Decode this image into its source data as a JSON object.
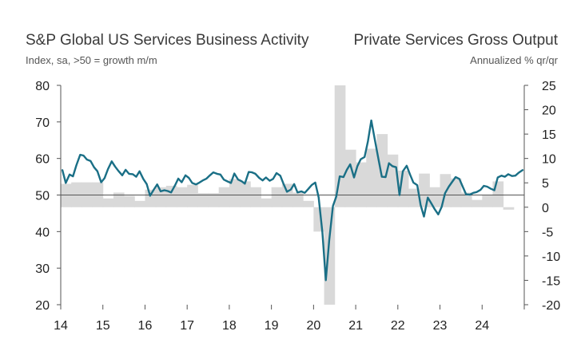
{
  "header": {
    "left_title": "S&P Global US Services Business Activity",
    "left_subtitle": "Index, sa, >50 = growth m/m",
    "right_title": "Private Services Gross Output",
    "right_subtitle": "Annualized % qr/qr"
  },
  "chart_data": {
    "type": "line",
    "title": "S&P Global US Services Business Activity / Private Services Gross Output",
    "x_range": [
      2014.0,
      2025.0
    ],
    "x_ticks": [
      "14",
      "15",
      "16",
      "17",
      "18",
      "19",
      "20",
      "21",
      "22",
      "23",
      "24"
    ],
    "left_axis": {
      "label": "Index, sa, >50 = growth m/m",
      "range": [
        20,
        80
      ],
      "ticks": [
        "80",
        "70",
        "60",
        "50",
        "40",
        "30",
        "20"
      ]
    },
    "right_axis": {
      "label": "Annualized % qr/qr",
      "range": [
        -20,
        25
      ],
      "ticks": [
        "25",
        "20",
        "15",
        "10",
        "5",
        "0",
        "-5",
        "-10",
        "-15",
        "-20"
      ]
    },
    "colors": {
      "line": "#1a6f86",
      "bars": "#d9d9d9",
      "axis": "#555555"
    },
    "series": [
      {
        "name": "S&P Global US Services Business Activity",
        "kind": "line",
        "axis": "left",
        "x": [
          2014.0,
          2014.08,
          2014.17,
          2014.25,
          2014.33,
          2014.42,
          2014.5,
          2014.58,
          2014.67,
          2014.75,
          2014.83,
          2014.92,
          2015.0,
          2015.08,
          2015.17,
          2015.25,
          2015.33,
          2015.42,
          2015.5,
          2015.58,
          2015.67,
          2015.75,
          2015.83,
          2015.92,
          2016.0,
          2016.08,
          2016.17,
          2016.25,
          2016.33,
          2016.42,
          2016.5,
          2016.58,
          2016.67,
          2016.75,
          2016.83,
          2016.92,
          2017.0,
          2017.08,
          2017.17,
          2017.25,
          2017.33,
          2017.42,
          2017.5,
          2017.58,
          2017.67,
          2017.75,
          2017.83,
          2017.92,
          2018.0,
          2018.08,
          2018.17,
          2018.25,
          2018.33,
          2018.42,
          2018.5,
          2018.58,
          2018.67,
          2018.75,
          2018.83,
          2018.92,
          2019.0,
          2019.08,
          2019.17,
          2019.25,
          2019.33,
          2019.42,
          2019.5,
          2019.58,
          2019.67,
          2019.75,
          2019.83,
          2019.92,
          2020.0,
          2020.08,
          2020.17,
          2020.25,
          2020.33,
          2020.42,
          2020.5,
          2020.58,
          2020.67,
          2020.75,
          2020.83,
          2020.92,
          2021.0,
          2021.08,
          2021.17,
          2021.25,
          2021.33,
          2021.42,
          2021.5,
          2021.58,
          2021.67,
          2021.75,
          2021.83,
          2021.92,
          2022.0,
          2022.08,
          2022.17,
          2022.25,
          2022.33,
          2022.42,
          2022.5,
          2022.58,
          2022.67,
          2022.75,
          2022.83,
          2022.92,
          2023.0,
          2023.08,
          2023.17,
          2023.25,
          2023.33,
          2023.42,
          2023.5,
          2023.58,
          2023.67,
          2023.75,
          2023.83,
          2023.92,
          2024.0,
          2024.08,
          2024.17,
          2024.25,
          2024.33,
          2024.42,
          2024.5,
          2024.58,
          2024.67,
          2024.75,
          2024.83,
          2024.92
        ],
        "y": [
          56.8,
          53.3,
          55.6,
          55.1,
          58.1,
          61.0,
          60.8,
          59.7,
          59.3,
          57.6,
          56.5,
          53.5,
          54.6,
          57.1,
          59.2,
          57.8,
          56.6,
          55.4,
          56.9,
          55.8,
          55.7,
          55.0,
          56.5,
          54.4,
          53.0,
          49.8,
          51.5,
          52.9,
          51.0,
          51.3,
          51.1,
          50.7,
          52.6,
          54.5,
          53.5,
          55.4,
          54.7,
          53.3,
          52.9,
          53.4,
          54.0,
          54.5,
          55.4,
          56.2,
          55.8,
          55.6,
          54.2,
          53.7,
          53.3,
          55.9,
          54.2,
          53.8,
          53.1,
          56.3,
          56.2,
          55.8,
          54.7,
          54.0,
          54.8,
          53.9,
          54.4,
          56.0,
          55.3,
          53.0,
          50.9,
          51.5,
          53.0,
          50.7,
          51.0,
          50.6,
          51.6,
          52.8,
          53.4,
          49.4,
          39.8,
          26.7,
          37.5,
          47.0,
          49.6,
          55.1,
          54.9,
          56.9,
          58.4,
          54.8,
          57.9,
          59.8,
          60.4,
          64.7,
          70.4,
          64.8,
          59.8,
          55.0,
          54.9,
          58.7,
          57.9,
          57.6,
          50.0,
          56.5,
          58.0,
          55.6,
          53.4,
          52.7,
          47.3,
          44.1,
          49.3,
          47.8,
          46.2,
          44.7,
          46.8,
          50.5,
          52.3,
          53.6,
          54.9,
          54.4,
          52.3,
          50.2,
          50.1,
          50.6,
          50.8,
          51.4,
          52.5,
          52.3,
          51.7,
          51.3,
          54.8,
          55.3,
          55.0,
          55.7,
          55.2,
          55.3,
          56.1,
          56.8
        ]
      },
      {
        "name": "Private Services Gross Output",
        "kind": "bar",
        "axis": "right",
        "quarters": [
          2014.0,
          2014.25,
          2014.5,
          2014.75,
          2015.0,
          2015.25,
          2015.5,
          2015.75,
          2016.0,
          2016.25,
          2016.5,
          2016.75,
          2017.0,
          2017.25,
          2017.5,
          2017.75,
          2018.0,
          2018.25,
          2018.5,
          2018.75,
          2019.0,
          2019.25,
          2019.5,
          2019.75,
          2020.0,
          2020.25,
          2020.5,
          2020.75,
          2021.0,
          2021.25,
          2021.5,
          2021.75,
          2022.0,
          2022.25,
          2022.5,
          2022.75,
          2023.0,
          2023.25,
          2023.5,
          2023.75,
          2024.0,
          2024.25,
          2024.5
        ],
        "values": [
          4.8,
          5.1,
          5.1,
          5.1,
          1.8,
          3.0,
          2.3,
          1.3,
          3.6,
          4.1,
          4.4,
          4.1,
          4.6,
          2.9,
          2.9,
          4.1,
          5.8,
          5.3,
          4.1,
          1.8,
          4.1,
          4.8,
          3.0,
          1.3,
          -5.0,
          -20.0,
          25.0,
          11.8,
          9.2,
          12.0,
          15.0,
          10.8,
          7.5,
          3.8,
          6.9,
          4.1,
          6.8,
          5.9,
          3.0,
          1.5,
          2.4,
          5.3,
          -0.5
        ]
      }
    ]
  }
}
